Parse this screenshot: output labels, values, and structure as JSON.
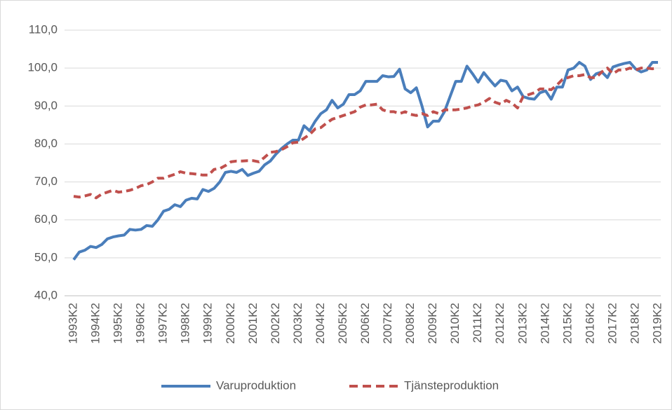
{
  "chart_data": {
    "type": "line",
    "categories": [
      "1993K2",
      null,
      null,
      null,
      "1994K2",
      null,
      null,
      null,
      "1995K2",
      null,
      null,
      null,
      "1996K2",
      null,
      null,
      null,
      "1997K2",
      null,
      null,
      null,
      "1998K2",
      null,
      null,
      null,
      "1999K2",
      null,
      null,
      null,
      "2000K2",
      null,
      null,
      null,
      "2001K2",
      null,
      null,
      null,
      "2002K2",
      null,
      null,
      null,
      "2003K2",
      null,
      null,
      null,
      "2004K2",
      null,
      null,
      null,
      "2005K2",
      null,
      null,
      null,
      "2006K2",
      null,
      null,
      null,
      "2007K2",
      null,
      null,
      null,
      "2008K2",
      null,
      null,
      null,
      "2009K2",
      null,
      null,
      null,
      "2010K2",
      null,
      null,
      null,
      "2011K2",
      null,
      null,
      null,
      "2012K2",
      null,
      null,
      null,
      "2013K2",
      null,
      null,
      null,
      "2014K2",
      null,
      null,
      null,
      "2015K2",
      null,
      null,
      null,
      "2016K2",
      null,
      null,
      null,
      "2017K2",
      null,
      null,
      null,
      "2018K2",
      null,
      null,
      null,
      "2019K2"
    ],
    "series": [
      {
        "name": "Varuproduktion",
        "color": "#4a7ebb",
        "dash": false,
        "values": [
          49.5,
          51.5,
          52,
          53,
          52.7,
          53.5,
          55,
          55.5,
          55.8,
          56,
          57.5,
          57.3,
          57.5,
          58.5,
          58.3,
          60,
          62.3,
          62.8,
          64,
          63.5,
          65.2,
          65.7,
          65.5,
          68,
          67.5,
          68.3,
          70,
          72.5,
          72.8,
          72.5,
          73.3,
          71.7,
          72.3,
          72.8,
          74.5,
          75.5,
          77.3,
          78.8,
          80,
          81,
          81,
          84.8,
          83.5,
          86,
          88,
          89,
          91.5,
          89.5,
          90.5,
          93,
          93,
          94,
          96.5,
          96.5,
          96.5,
          98,
          97.7,
          97.8,
          99.7,
          94.5,
          93.5,
          94.8,
          90,
          84.5,
          86,
          86,
          88.5,
          92.5,
          96.5,
          96.5,
          100.5,
          98.5,
          96.3,
          98.8,
          97,
          95.3,
          96.8,
          96.5,
          94,
          95,
          92.5,
          92,
          91.8,
          93.5,
          94,
          91.8,
          95,
          95,
          99.5,
          100,
          101.5,
          100.5,
          97,
          98.5,
          99,
          97.5,
          100.3,
          100.8,
          101.2,
          101.5,
          99.8,
          99,
          99.5,
          101.5,
          101.5
        ]
      },
      {
        "name": "Tjänsteproduktion",
        "color": "#c0504d",
        "dash": true,
        "values": [
          66.2,
          66,
          66.3,
          66.7,
          65.8,
          66.8,
          67.3,
          67.8,
          67.3,
          67.5,
          67.8,
          68.3,
          69,
          69.3,
          70,
          71,
          71,
          71.5,
          72,
          72.7,
          72.3,
          72.2,
          72,
          71.8,
          71.8,
          73.3,
          73.5,
          74.3,
          75.3,
          75.5,
          75.5,
          75.6,
          75.6,
          75.3,
          76.5,
          77.8,
          78,
          78.5,
          79.3,
          80.3,
          80.5,
          81.5,
          82.5,
          84,
          84.3,
          85.5,
          86.5,
          87,
          87.5,
          88,
          88.5,
          89.7,
          90.3,
          90.3,
          90.5,
          89,
          88.5,
          88.5,
          88,
          88.5,
          87.8,
          87.5,
          88,
          87.5,
          88.5,
          88,
          89,
          89,
          89,
          89.2,
          89.5,
          90,
          90.3,
          91,
          92,
          91,
          90.5,
          91.5,
          90.8,
          89.5,
          92.5,
          93,
          93.5,
          94.5,
          94.5,
          94.3,
          95.5,
          97,
          97.5,
          98,
          98,
          98.3,
          97.5,
          97.5,
          99,
          100,
          98.5,
          99.5,
          99.5,
          100,
          99.5,
          100,
          100,
          99.8,
          100
        ]
      }
    ],
    "ylim": [
      40,
      110
    ],
    "yticks": [
      {
        "value": 40,
        "label": "40,0"
      },
      {
        "value": 50,
        "label": "50,0"
      },
      {
        "value": 60,
        "label": "60,0"
      },
      {
        "value": 70,
        "label": "70,0"
      },
      {
        "value": 80,
        "label": "80,0"
      },
      {
        "value": 90,
        "label": "90,0"
      },
      {
        "value": 100,
        "label": "100,0"
      },
      {
        "value": 110,
        "label": "110,0"
      }
    ],
    "grid": true,
    "legend": "bottom"
  }
}
